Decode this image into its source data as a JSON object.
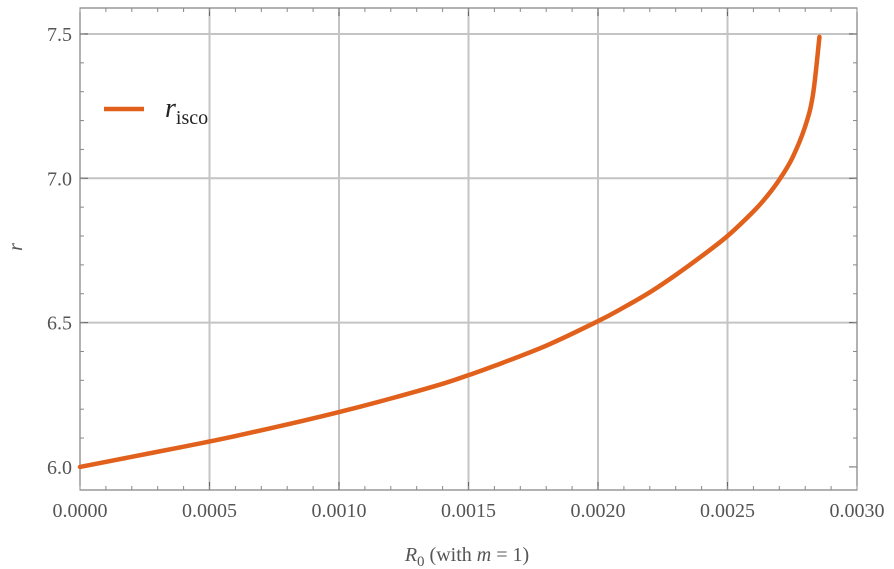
{
  "chart_data": {
    "type": "line",
    "xlabel": {
      "main": "R",
      "main_sub": "0",
      "rest_1": " (with ",
      "var": "m",
      "rest_2": " = 1)"
    },
    "ylabel": "r",
    "xlim": [
      0,
      0.003
    ],
    "ylim": [
      5.92,
      7.59
    ],
    "x_ticks": [
      0,
      0.0005,
      0.001,
      0.0015,
      0.002,
      0.0025,
      0.003
    ],
    "x_tick_labels": [
      "0.0000",
      "0.0005",
      "0.0010",
      "0.0015",
      "0.0020",
      "0.0025",
      "0.0030"
    ],
    "y_ticks": [
      6.0,
      6.5,
      7.0,
      7.5
    ],
    "y_tick_labels": [
      "6.0",
      "6.5",
      "7.0",
      "7.5"
    ],
    "grid": true,
    "legend_position": "top-left",
    "series": [
      {
        "name_main": "r",
        "name_sub": "isco",
        "color": "#e0601c",
        "x": [
          0,
          0.0002,
          0.0004,
          0.0005,
          0.0006,
          0.0008,
          0.001,
          0.0012,
          0.0014,
          0.0015,
          0.0016,
          0.0018,
          0.002,
          0.0021,
          0.0022,
          0.0023,
          0.0024,
          0.0025,
          0.0026,
          0.00265,
          0.0027,
          0.00275,
          0.0028,
          0.00283,
          0.002855
        ],
        "y": [
          6.0,
          6.035,
          6.07,
          6.088,
          6.107,
          6.147,
          6.19,
          6.237,
          6.288,
          6.318,
          6.35,
          6.42,
          6.505,
          6.553,
          6.605,
          6.665,
          6.73,
          6.8,
          6.885,
          6.935,
          6.995,
          7.07,
          7.18,
          7.29,
          7.49
        ]
      }
    ]
  }
}
